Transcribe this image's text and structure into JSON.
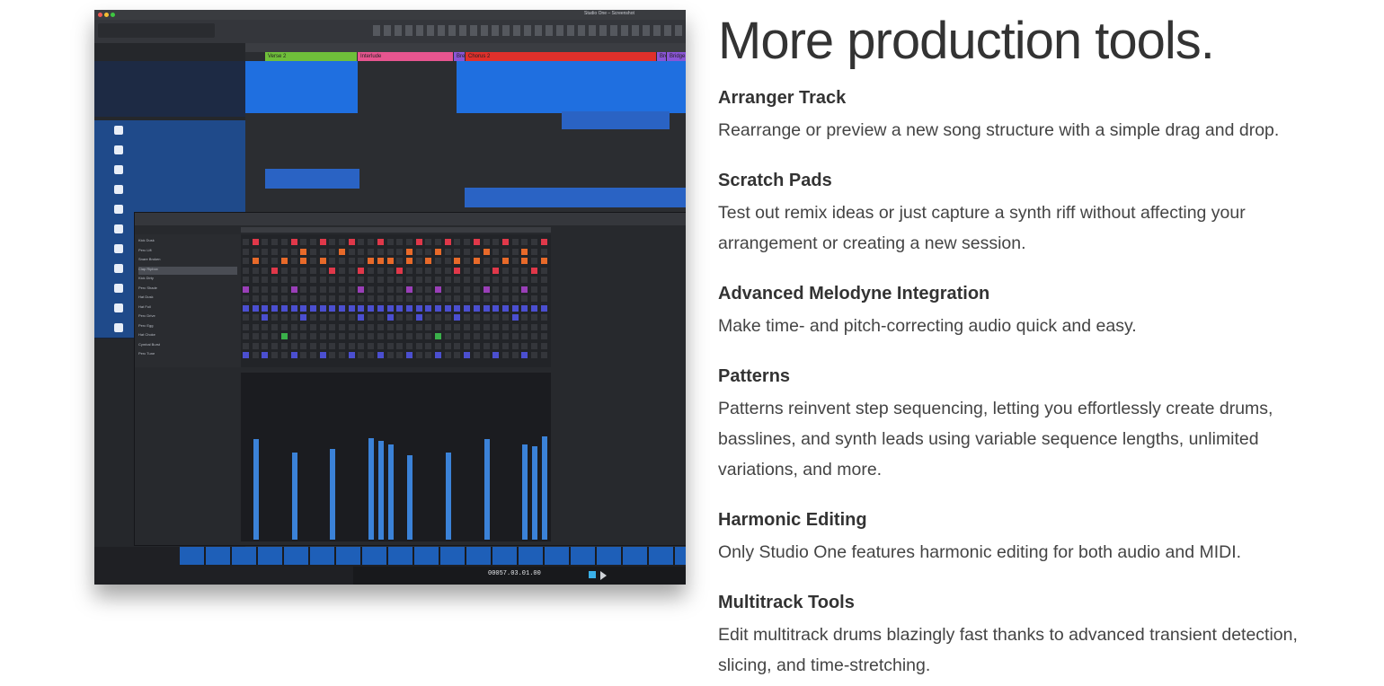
{
  "heading": "More production tools.",
  "features": [
    {
      "title": "Arranger Track",
      "desc": "Rearrange or preview a new song structure with a simple drag and drop."
    },
    {
      "title": "Scratch Pads",
      "desc": "Test out remix ideas or just capture a synth riff without affecting your arrangement or creating a new session."
    },
    {
      "title": "Advanced Melodyne Integration",
      "desc": "Make time- and pitch-correcting audio quick and easy."
    },
    {
      "title": "Patterns",
      "desc": "Patterns reinvent step sequencing, letting you effortlessly create drums, basslines, and synth leads using variable sequence lengths, unlimited variations, and more."
    },
    {
      "title": "Harmonic Editing",
      "desc": "Only Studio One features harmonic editing for both audio and MIDI."
    },
    {
      "title": "Multitrack Tools",
      "desc": "Edit multitrack drums blazingly fast thanks to advanced transient detection, slicing, and time-stretching."
    }
  ],
  "screenshot": {
    "window_title": "Studio One – Screenshot",
    "arranger": [
      {
        "label": "Verse 2",
        "color": "#6fbf3a"
      },
      {
        "label": "Interlude",
        "color": "#e7558f"
      },
      {
        "label": "Bre",
        "color": "#8a55d6"
      },
      {
        "label": "Chorus 2",
        "color": "#e0302b"
      },
      {
        "label": "Bre",
        "color": "#8a55d6"
      },
      {
        "label": "Bridge",
        "color": "#8a55d6"
      }
    ],
    "pattern_rows": [
      "Kick Dusk",
      "Perc Lift",
      "Snare Broken",
      "Clap Ripbox",
      "Kick Dirty",
      "Perc Shade",
      "Hat Dusk",
      "Hat Foil",
      "Perc Drive",
      "Perc Egg",
      "Hat Choke",
      "Cymbal Burst",
      "Perc Tune"
    ],
    "counter": "00057.03.01.00",
    "colors": {
      "track_blue": "#1f6fe0",
      "pad_red": "#e0384a",
      "pad_orange": "#e86a2a",
      "pad_purple": "#9a3fb8",
      "pad_indigo": "#4b4fd0",
      "pad_green": "#3ab04a",
      "vel_blue": "#3b82d8"
    }
  }
}
